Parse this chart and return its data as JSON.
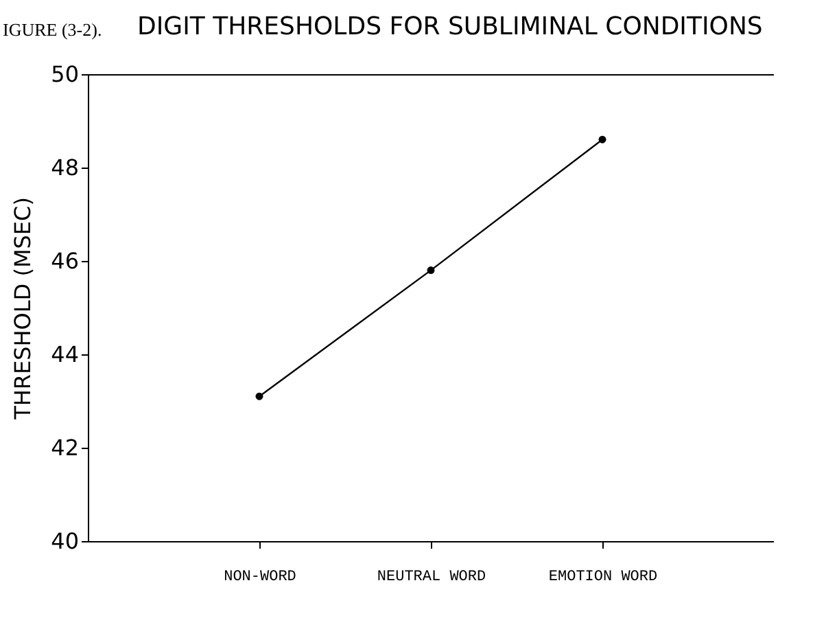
{
  "chart_data": {
    "type": "line",
    "title": "DIGIT THRESHOLDS FOR SUBLIMINAL CONDITIONS",
    "annotations": [
      "IGURE (3-2)."
    ],
    "ylabel": "THRESHOLD (MSEC)",
    "categories": [
      "NON-WORD",
      "NEUTRAL WORD",
      "EMOTION WORD"
    ],
    "series": [
      {
        "color": "#000000",
        "values": [
          43.1,
          45.8,
          48.6
        ]
      }
    ],
    "ylim": [
      40,
      50
    ],
    "yticks": [
      40,
      42,
      44,
      46,
      48,
      50
    ],
    "marker": "circle",
    "line_style": "solid",
    "grid": false
  }
}
